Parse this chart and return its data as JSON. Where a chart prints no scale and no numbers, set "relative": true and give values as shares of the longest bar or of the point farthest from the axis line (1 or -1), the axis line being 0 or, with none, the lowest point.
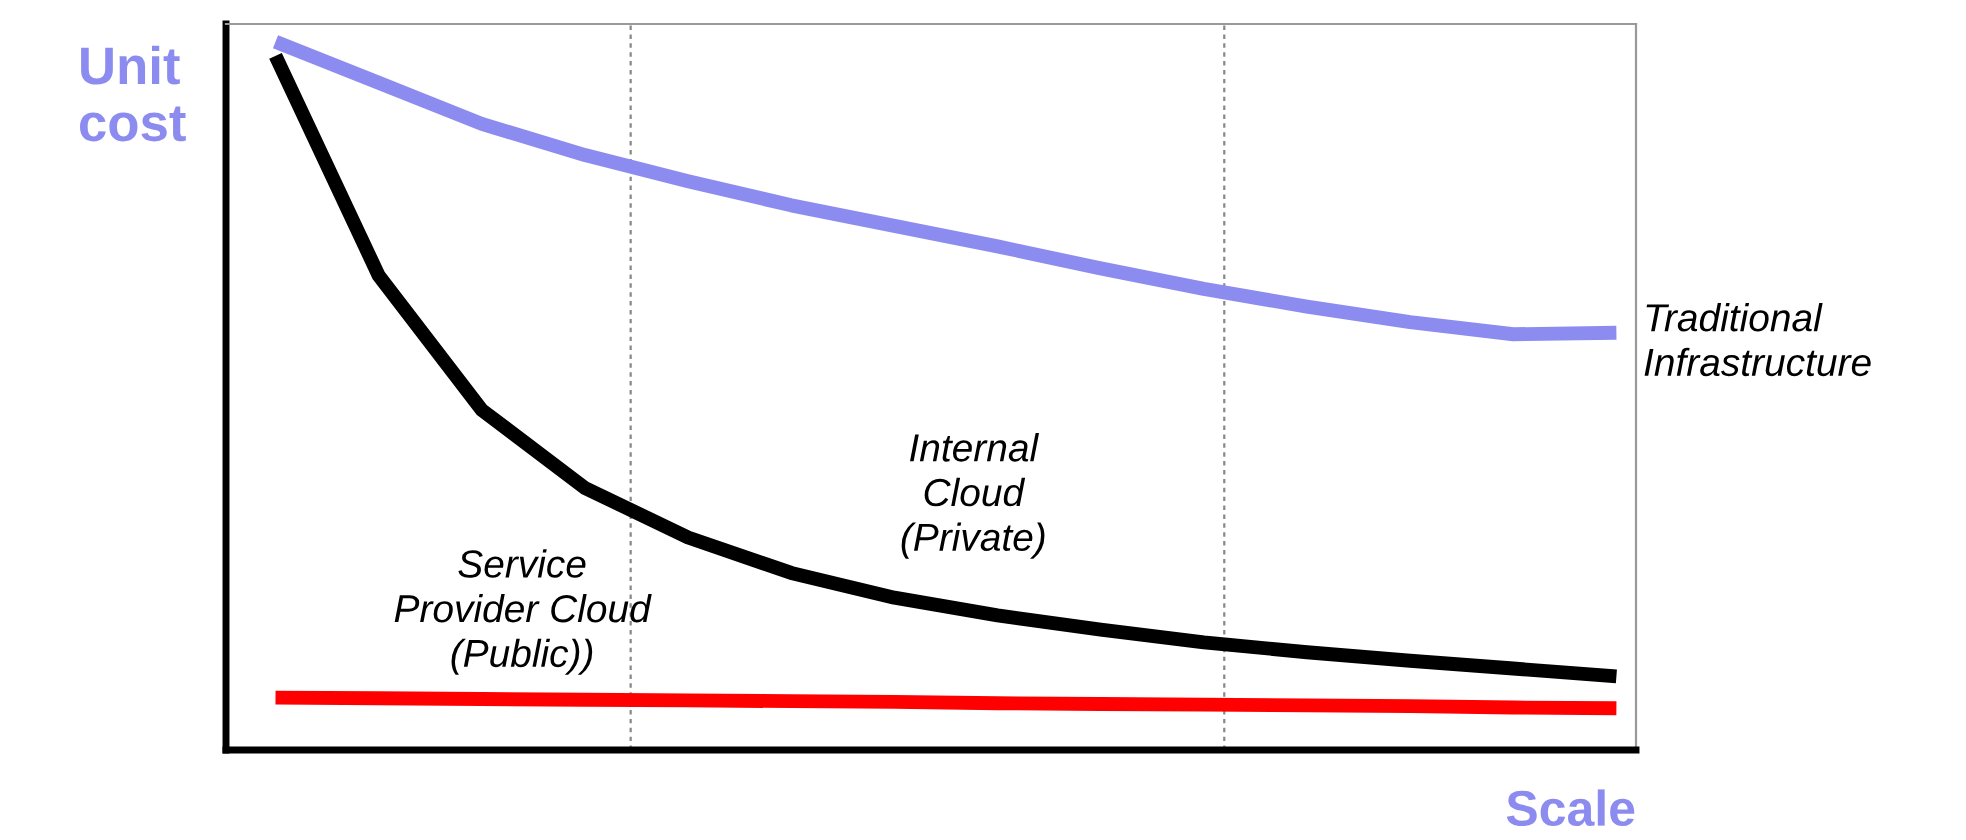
{
  "chart_data": {
    "type": "line",
    "relative": true,
    "xlabel": "Scale",
    "ylabel": "Unit\ncost",
    "marker": "none",
    "line_style": "solid",
    "categories": [
      null,
      null,
      null,
      null,
      null,
      null,
      null,
      null,
      null,
      null,
      null,
      null,
      null,
      null
    ],
    "series": [
      {
        "name": "Traditional\nInfrastructure",
        "color": "#8c8cf0",
        "values": [
          1.0,
          0.942,
          0.884,
          0.84,
          0.803,
          0.769,
          0.74,
          0.711,
          0.68,
          0.651,
          0.626,
          0.604,
          0.587,
          0.589
        ]
      },
      {
        "name": "Internal\nCloud\n(Private)",
        "color": "#000000",
        "values": [
          0.98,
          0.67,
          0.48,
          0.37,
          0.3,
          0.25,
          0.215,
          0.19,
          0.17,
          0.152,
          0.138,
          0.126,
          0.115,
          0.104
        ]
      },
      {
        "name": "Service\nProvider Cloud\n(Public))",
        "color": "#ff0000",
        "values": [
          0.074,
          0.073,
          0.072,
          0.071,
          0.07,
          0.069,
          0.068,
          0.066,
          0.065,
          0.064,
          0.063,
          0.062,
          0.06,
          0.059
        ]
      }
    ]
  }
}
